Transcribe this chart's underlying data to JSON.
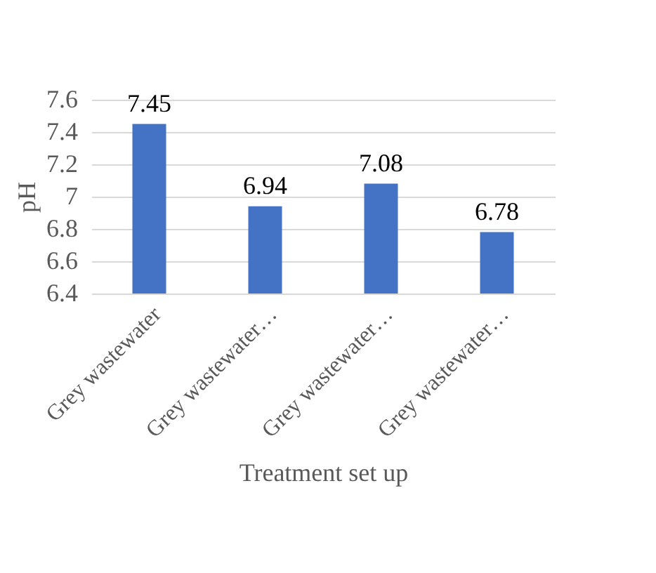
{
  "chart_data": {
    "type": "bar",
    "xlabel": "Treatment set up",
    "ylabel": "pH",
    "categories": [
      "Grey wastewater",
      "Grey wastewater…",
      "Grey wastewater…",
      "Grey wastewater…"
    ],
    "values": [
      7.45,
      6.94,
      7.08,
      6.78
    ],
    "color": "#4472c4",
    "ylim": [
      6.4,
      7.6
    ],
    "yticks": [
      6.4,
      6.6,
      6.8,
      7,
      7.2,
      7.4,
      7.6
    ],
    "grid": "y",
    "data_labels": true
  }
}
